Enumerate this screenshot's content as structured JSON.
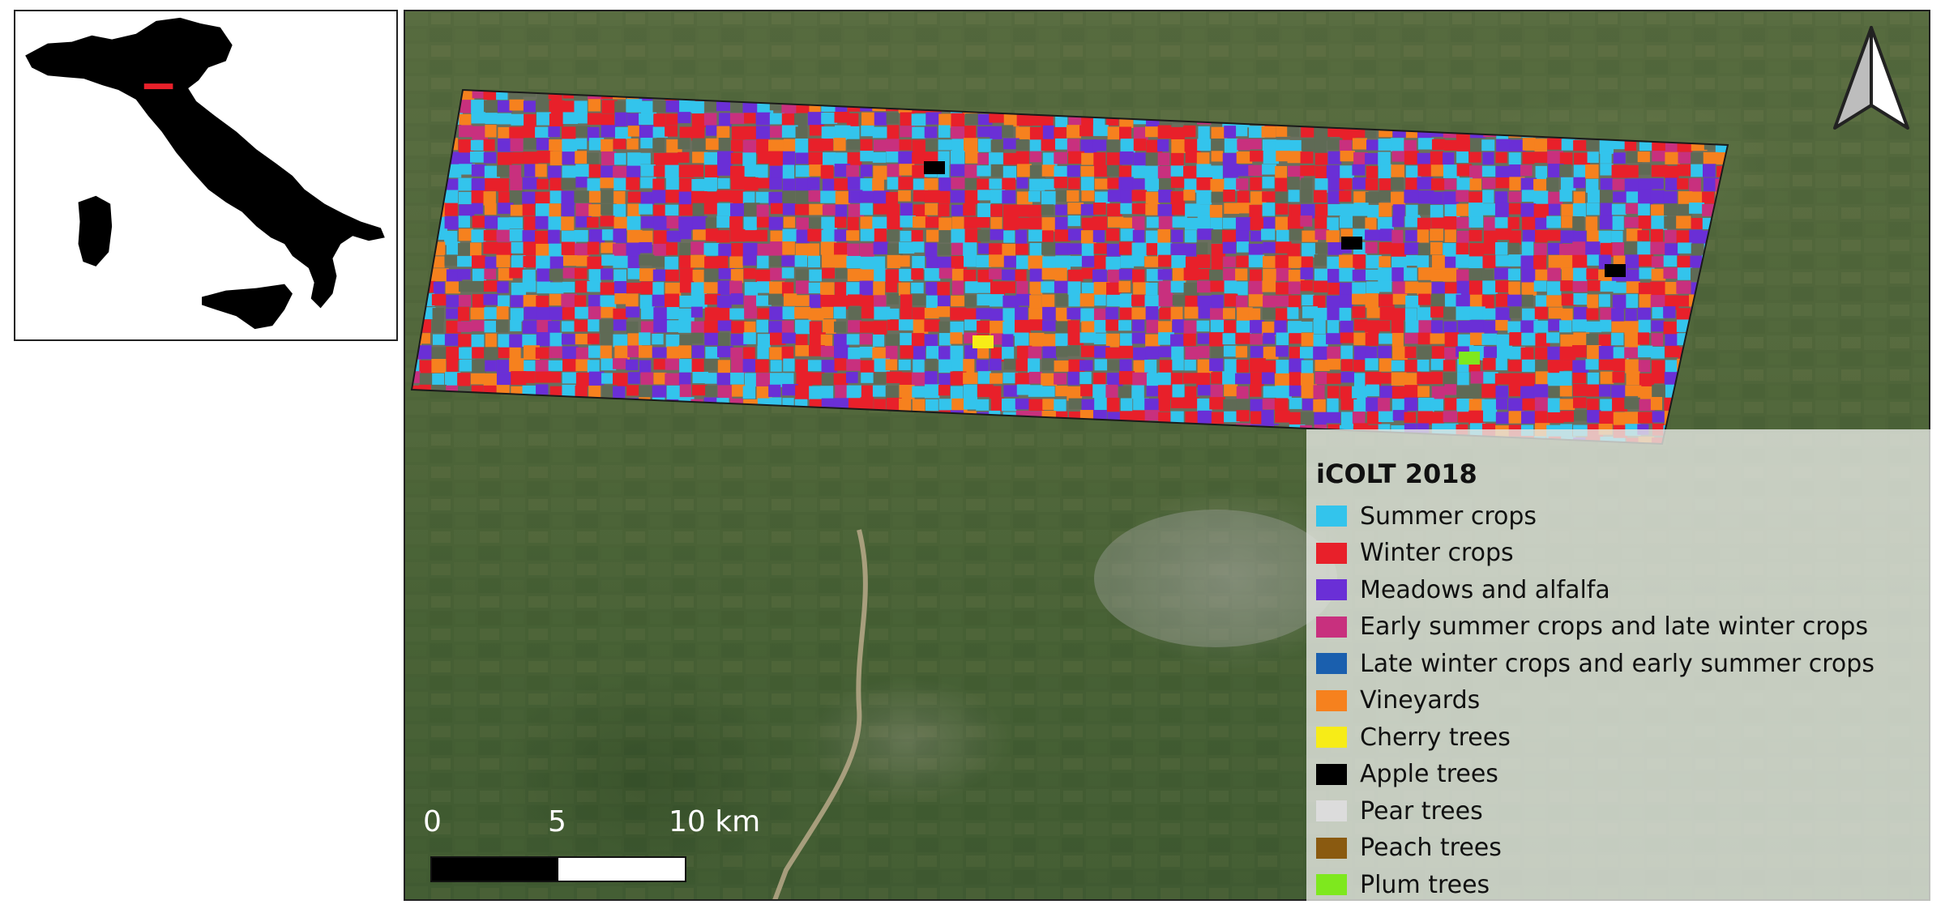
{
  "legend": {
    "title": "iCOLT 2018",
    "items": [
      {
        "label": "Summer crops",
        "color": "#33c4ec"
      },
      {
        "label": "Winter crops",
        "color": "#e8202a"
      },
      {
        "label": "Meadows and alfalfa",
        "color": "#6a2fd6"
      },
      {
        "label": "Early summer crops and late winter crops",
        "color": "#c8307e"
      },
      {
        "label": "Late winter crops and early summer crops",
        "color": "#1a5fae"
      },
      {
        "label": "Vineyards",
        "color": "#f6811e"
      },
      {
        "label": "Cherry trees",
        "color": "#f7ec17"
      },
      {
        "label": "Apple trees",
        "color": "#000000"
      },
      {
        "label": "Pear trees",
        "color": "#dcdcdc"
      },
      {
        "label": "Peach trees",
        "color": "#8a5a10"
      },
      {
        "label": "Plum trees",
        "color": "#7ee81e"
      }
    ]
  },
  "scale_bar": {
    "labels": [
      "0",
      "5",
      "10 km"
    ]
  },
  "north_arrow": {
    "icon": "north-arrow-icon"
  },
  "inset": {
    "country_color": "#000000",
    "highlight_color": "#e8202a"
  }
}
